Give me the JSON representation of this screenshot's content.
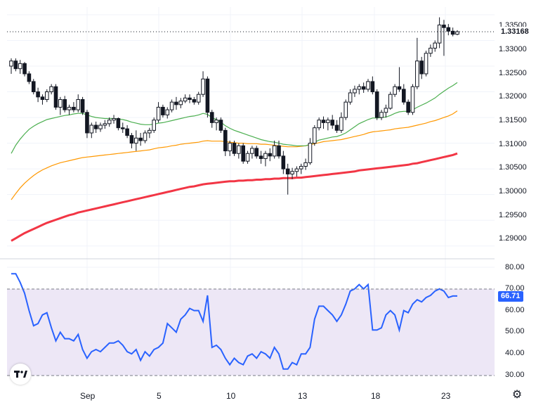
{
  "colors": {
    "up": "#ffffff",
    "down": "#131722",
    "ma_fast": "#4caf50",
    "ma_mid": "#ff9800",
    "ma_slow": "#f23645",
    "rsi_line": "#2962ff",
    "rsi_band": "#ede7f6",
    "current_price_badge": "#131722",
    "rsi_badge": "#2962ff"
  },
  "price_axis": {
    "ticks": [
      "1.33500",
      "1.33000",
      "1.32500",
      "1.32000",
      "1.31500",
      "1.31000",
      "1.30500",
      "1.30000",
      "1.29500",
      "1.29000"
    ],
    "current_price": "1.33168"
  },
  "rsi_axis": {
    "ticks": [
      "80.00",
      "70.00",
      "60.00",
      "50.00",
      "40.00",
      "30.00"
    ],
    "current_value": "66.71"
  },
  "x_axis": {
    "labels": [
      "Sep",
      "5",
      "10",
      "13",
      "18",
      "23"
    ]
  },
  "logo_icon": "tradingview-logo-icon",
  "settings_icon": "gear-icon",
  "chart_data": [
    {
      "type": "candlestick",
      "ylim": [
        1.2875,
        1.3365
      ],
      "grid": true,
      "candles": [
        [
          1.325,
          1.3265,
          1.3235,
          1.326
        ],
        [
          1.326,
          1.3265,
          1.324,
          1.3245
        ],
        [
          1.3245,
          1.3262,
          1.3235,
          1.3255
        ],
        [
          1.3255,
          1.3258,
          1.323,
          1.3235
        ],
        [
          1.3235,
          1.324,
          1.3215,
          1.322
        ],
        [
          1.322,
          1.3225,
          1.3195,
          1.32
        ],
        [
          1.32,
          1.3208,
          1.318,
          1.319
        ],
        [
          1.319,
          1.3195,
          1.3175,
          1.3185
        ],
        [
          1.3185,
          1.3205,
          1.318,
          1.32
        ],
        [
          1.32,
          1.3215,
          1.3195,
          1.321
        ],
        [
          1.321,
          1.3215,
          1.3165,
          1.317
        ],
        [
          1.317,
          1.319,
          1.3155,
          1.3185
        ],
        [
          1.3185,
          1.3192,
          1.316,
          1.3165
        ],
        [
          1.3165,
          1.3175,
          1.3155,
          1.317
        ],
        [
          1.317,
          1.318,
          1.316,
          1.3165
        ],
        [
          1.3165,
          1.3195,
          1.316,
          1.3185
        ],
        [
          1.3185,
          1.319,
          1.3155,
          1.316
        ],
        [
          1.316,
          1.3165,
          1.311,
          1.312
        ],
        [
          1.312,
          1.314,
          1.311,
          1.3135
        ],
        [
          1.3135,
          1.3142,
          1.312,
          1.3128
        ],
        [
          1.3128,
          1.314,
          1.3122,
          1.3135
        ],
        [
          1.3135,
          1.3145,
          1.3128,
          1.3138
        ],
        [
          1.3138,
          1.315,
          1.3132,
          1.3145
        ],
        [
          1.3145,
          1.3155,
          1.3138,
          1.3148
        ],
        [
          1.3148,
          1.315,
          1.3125,
          1.313
        ],
        [
          1.313,
          1.314,
          1.312,
          1.3128
        ],
        [
          1.3128,
          1.3135,
          1.311,
          1.3115
        ],
        [
          1.3115,
          1.312,
          1.309,
          1.31
        ],
        [
          1.31,
          1.3125,
          1.3085,
          1.311
        ],
        [
          1.311,
          1.312,
          1.3095,
          1.3105
        ],
        [
          1.3105,
          1.3125,
          1.31,
          1.312
        ],
        [
          1.312,
          1.313,
          1.311,
          1.3125
        ],
        [
          1.3125,
          1.315,
          1.312,
          1.3145
        ],
        [
          1.3145,
          1.318,
          1.314,
          1.317
        ],
        [
          1.317,
          1.3175,
          1.315,
          1.3155
        ],
        [
          1.3155,
          1.317,
          1.3148,
          1.3165
        ],
        [
          1.3165,
          1.3185,
          1.316,
          1.318
        ],
        [
          1.318,
          1.319,
          1.3165,
          1.3175
        ],
        [
          1.3175,
          1.3188,
          1.3168,
          1.3182
        ],
        [
          1.3182,
          1.3195,
          1.3178,
          1.3188
        ],
        [
          1.3188,
          1.3195,
          1.3178,
          1.3185
        ],
        [
          1.3185,
          1.319,
          1.3175,
          1.318
        ],
        [
          1.318,
          1.32,
          1.3175,
          1.3195
        ],
        [
          1.3195,
          1.324,
          1.319,
          1.3225
        ],
        [
          1.3225,
          1.323,
          1.315,
          1.316
        ],
        [
          1.316,
          1.3165,
          1.313,
          1.314
        ],
        [
          1.314,
          1.315,
          1.3125,
          1.3145
        ],
        [
          1.3145,
          1.315,
          1.312,
          1.3125
        ],
        [
          1.3125,
          1.313,
          1.3075,
          1.3085
        ],
        [
          1.3085,
          1.3105,
          1.3075,
          1.31
        ],
        [
          1.31,
          1.3105,
          1.3075,
          1.308
        ],
        [
          1.308,
          1.31,
          1.307,
          1.3095
        ],
        [
          1.3095,
          1.31,
          1.306,
          1.3065
        ],
        [
          1.3065,
          1.3085,
          1.306,
          1.308
        ],
        [
          1.308,
          1.3095,
          1.307,
          1.309
        ],
        [
          1.309,
          1.3095,
          1.307,
          1.3075
        ],
        [
          1.3075,
          1.3085,
          1.306,
          1.307
        ],
        [
          1.307,
          1.3085,
          1.3055,
          1.308
        ],
        [
          1.308,
          1.309,
          1.3065,
          1.3075
        ],
        [
          1.3075,
          1.3105,
          1.307,
          1.3095
        ],
        [
          1.3095,
          1.3105,
          1.307,
          1.3075
        ],
        [
          1.3075,
          1.3085,
          1.304,
          1.305
        ],
        [
          1.305,
          1.306,
          1.3,
          1.304
        ],
        [
          1.304,
          1.3052,
          1.303,
          1.3045
        ],
        [
          1.3045,
          1.3055,
          1.3035,
          1.305
        ],
        [
          1.305,
          1.306,
          1.304,
          1.3055
        ],
        [
          1.3055,
          1.307,
          1.3048,
          1.3062
        ],
        [
          1.3062,
          1.311,
          1.3058,
          1.31
        ],
        [
          1.31,
          1.3135,
          1.3095,
          1.313
        ],
        [
          1.313,
          1.315,
          1.3125,
          1.3145
        ],
        [
          1.3145,
          1.3152,
          1.3128,
          1.314
        ],
        [
          1.314,
          1.315,
          1.3125,
          1.3145
        ],
        [
          1.3145,
          1.3155,
          1.3128,
          1.3135
        ],
        [
          1.3135,
          1.3145,
          1.312,
          1.3125
        ],
        [
          1.3125,
          1.316,
          1.312,
          1.315
        ],
        [
          1.315,
          1.3185,
          1.3145,
          1.318
        ],
        [
          1.318,
          1.3205,
          1.3175,
          1.3198
        ],
        [
          1.3198,
          1.3212,
          1.319,
          1.3205
        ],
        [
          1.3205,
          1.3215,
          1.3195,
          1.321
        ],
        [
          1.321,
          1.3218,
          1.3198,
          1.3205
        ],
        [
          1.3205,
          1.3225,
          1.32,
          1.322
        ],
        [
          1.322,
          1.323,
          1.3195,
          1.32
        ],
        [
          1.32,
          1.3205,
          1.3145,
          1.315
        ],
        [
          1.315,
          1.3165,
          1.3145,
          1.316
        ],
        [
          1.316,
          1.3175,
          1.315,
          1.3168
        ],
        [
          1.3168,
          1.32,
          1.3165,
          1.3195
        ],
        [
          1.3195,
          1.3215,
          1.319,
          1.321
        ],
        [
          1.321,
          1.3248,
          1.32,
          1.3205
        ],
        [
          1.3205,
          1.3215,
          1.3175,
          1.318
        ],
        [
          1.318,
          1.3185,
          1.3155,
          1.316
        ],
        [
          1.316,
          1.3215,
          1.3155,
          1.321
        ],
        [
          1.321,
          1.3305,
          1.3205,
          1.326
        ],
        [
          1.326,
          1.3268,
          1.3225,
          1.3235
        ],
        [
          1.3235,
          1.328,
          1.323,
          1.3275
        ],
        [
          1.3275,
          1.3292,
          1.3268,
          1.3285
        ],
        [
          1.3285,
          1.33,
          1.3278,
          1.3295
        ],
        [
          1.3295,
          1.3345,
          1.3285,
          1.333
        ],
        [
          1.333,
          1.334,
          1.327,
          1.3325
        ],
        [
          1.3325,
          1.3332,
          1.331,
          1.3318
        ],
        [
          1.3318,
          1.3325,
          1.3308,
          1.3312
        ],
        [
          1.3312,
          1.332,
          1.331,
          1.3317
        ]
      ],
      "ma_fast": [
        1.308,
        1.3096,
        1.3108,
        1.3118,
        1.3127,
        1.3133,
        1.3138,
        1.3142,
        1.3146,
        1.3148,
        1.315,
        1.3152,
        1.3154,
        1.3155,
        1.3157,
        1.3158,
        1.3158,
        1.3155,
        1.3152,
        1.315,
        1.3149,
        1.3148,
        1.3148,
        1.3148,
        1.3147,
        1.3146,
        1.3144,
        1.3141,
        1.3139,
        1.3137,
        1.3136,
        1.3136,
        1.3137,
        1.3139,
        1.314,
        1.3142,
        1.3144,
        1.3146,
        1.3148,
        1.315,
        1.3152,
        1.3153,
        1.3155,
        1.3158,
        1.3156,
        1.315,
        1.3146,
        1.3141,
        1.3134,
        1.3129,
        1.3125,
        1.3122,
        1.3119,
        1.3116,
        1.3113,
        1.311,
        1.3107,
        1.3105,
        1.3103,
        1.3102,
        1.31,
        1.3098,
        1.3097,
        1.3096,
        1.3095,
        1.3095,
        1.3095,
        1.3098,
        1.3102,
        1.3106,
        1.3108,
        1.311,
        1.3112,
        1.3113,
        1.3116,
        1.312,
        1.3126,
        1.3132,
        1.3138,
        1.3142,
        1.3146,
        1.3149,
        1.3149,
        1.315,
        1.3151,
        1.3154,
        1.3158,
        1.3161,
        1.3162,
        1.3162,
        1.3165,
        1.317,
        1.3174,
        1.3178,
        1.3183,
        1.3188,
        1.3195,
        1.3201,
        1.3207,
        1.3212,
        1.3218
      ],
      "ma_mid": [
        1.299,
        1.3002,
        1.3013,
        1.3022,
        1.303,
        1.3037,
        1.3043,
        1.3048,
        1.3052,
        1.3056,
        1.3059,
        1.3062,
        1.3064,
        1.3066,
        1.3068,
        1.307,
        1.3072,
        1.3073,
        1.3074,
        1.3075,
        1.3076,
        1.3077,
        1.3078,
        1.3079,
        1.308,
        1.3081,
        1.3082,
        1.3083,
        1.3084,
        1.3085,
        1.3086,
        1.3087,
        1.3089,
        1.3091,
        1.3092,
        1.3093,
        1.3095,
        1.3096,
        1.3098,
        1.3099,
        1.31,
        1.3101,
        1.3102,
        1.3104,
        1.3105,
        1.3104,
        1.3104,
        1.3104,
        1.3103,
        1.3102,
        1.3101,
        1.31,
        1.31,
        1.3099,
        1.3099,
        1.3099,
        1.3098,
        1.3098,
        1.3097,
        1.3096,
        1.3095,
        1.3094,
        1.3093,
        1.3093,
        1.3093,
        1.3094,
        1.3095,
        1.3097,
        1.3099,
        1.3101,
        1.3103,
        1.3104,
        1.3105,
        1.3106,
        1.3107,
        1.3109,
        1.3111,
        1.3113,
        1.3115,
        1.3117,
        1.312,
        1.3122,
        1.3123,
        1.3124,
        1.3125,
        1.3126,
        1.3128,
        1.3129,
        1.313,
        1.3131,
        1.3133,
        1.3135,
        1.3137,
        1.3139,
        1.3142,
        1.3144,
        1.3147,
        1.315,
        1.3153,
        1.3157,
        1.3163
      ],
      "ma_slow": [
        1.291,
        1.2915,
        1.292,
        1.2925,
        1.2929,
        1.2933,
        1.2937,
        1.2941,
        1.2945,
        1.2948,
        1.2951,
        1.2954,
        1.2957,
        1.296,
        1.2962,
        1.2965,
        1.2967,
        1.2969,
        1.2971,
        1.2973,
        1.2975,
        1.2977,
        1.2979,
        1.2981,
        1.2983,
        1.2985,
        1.2987,
        1.2989,
        1.2991,
        1.2993,
        1.2995,
        1.2997,
        1.2999,
        1.3001,
        1.3003,
        1.3005,
        1.3007,
        1.3009,
        1.3011,
        1.3013,
        1.3015,
        1.3016,
        1.3018,
        1.302,
        1.3021,
        1.3022,
        1.3023,
        1.3024,
        1.3025,
        1.3026,
        1.3026,
        1.3027,
        1.3027,
        1.3028,
        1.3028,
        1.3029,
        1.3029,
        1.303,
        1.303,
        1.3031,
        1.3031,
        1.3032,
        1.3032,
        1.3032,
        1.3033,
        1.3033,
        1.3034,
        1.3035,
        1.3036,
        1.3037,
        1.3038,
        1.3039,
        1.304,
        1.3041,
        1.3042,
        1.3043,
        1.3044,
        1.3045,
        1.3047,
        1.3048,
        1.3049,
        1.305,
        1.3051,
        1.3052,
        1.3053,
        1.3054,
        1.3055,
        1.3056,
        1.3057,
        1.3058,
        1.306,
        1.3061,
        1.3063,
        1.3065,
        1.3067,
        1.3069,
        1.3071,
        1.3073,
        1.3075,
        1.3077,
        1.308
      ]
    },
    {
      "type": "line",
      "ylim": [
        30,
        80
      ],
      "band": [
        30,
        70
      ],
      "grid": true,
      "rsi": [
        77,
        77,
        73,
        68,
        60,
        53,
        54,
        58,
        59,
        52,
        46,
        50,
        47,
        47,
        46,
        49,
        42,
        38,
        41,
        42,
        41,
        43,
        45,
        45,
        46,
        44,
        41,
        40,
        42,
        37,
        41,
        39,
        42,
        43,
        45,
        54,
        52,
        50,
        56,
        58,
        61,
        60,
        60,
        55,
        67,
        43,
        44,
        42,
        38,
        35,
        38,
        36,
        35,
        39,
        40,
        38,
        41,
        40,
        38,
        43,
        40,
        33,
        33,
        36,
        35,
        40,
        40,
        43,
        56,
        62,
        62,
        60,
        58,
        55,
        58,
        63,
        69,
        70,
        72,
        70,
        72,
        51,
        51,
        52,
        58,
        60,
        58,
        51,
        60,
        59,
        63,
        65,
        64,
        66,
        67,
        69,
        70,
        69,
        66,
        66.71,
        66.71
      ]
    }
  ]
}
